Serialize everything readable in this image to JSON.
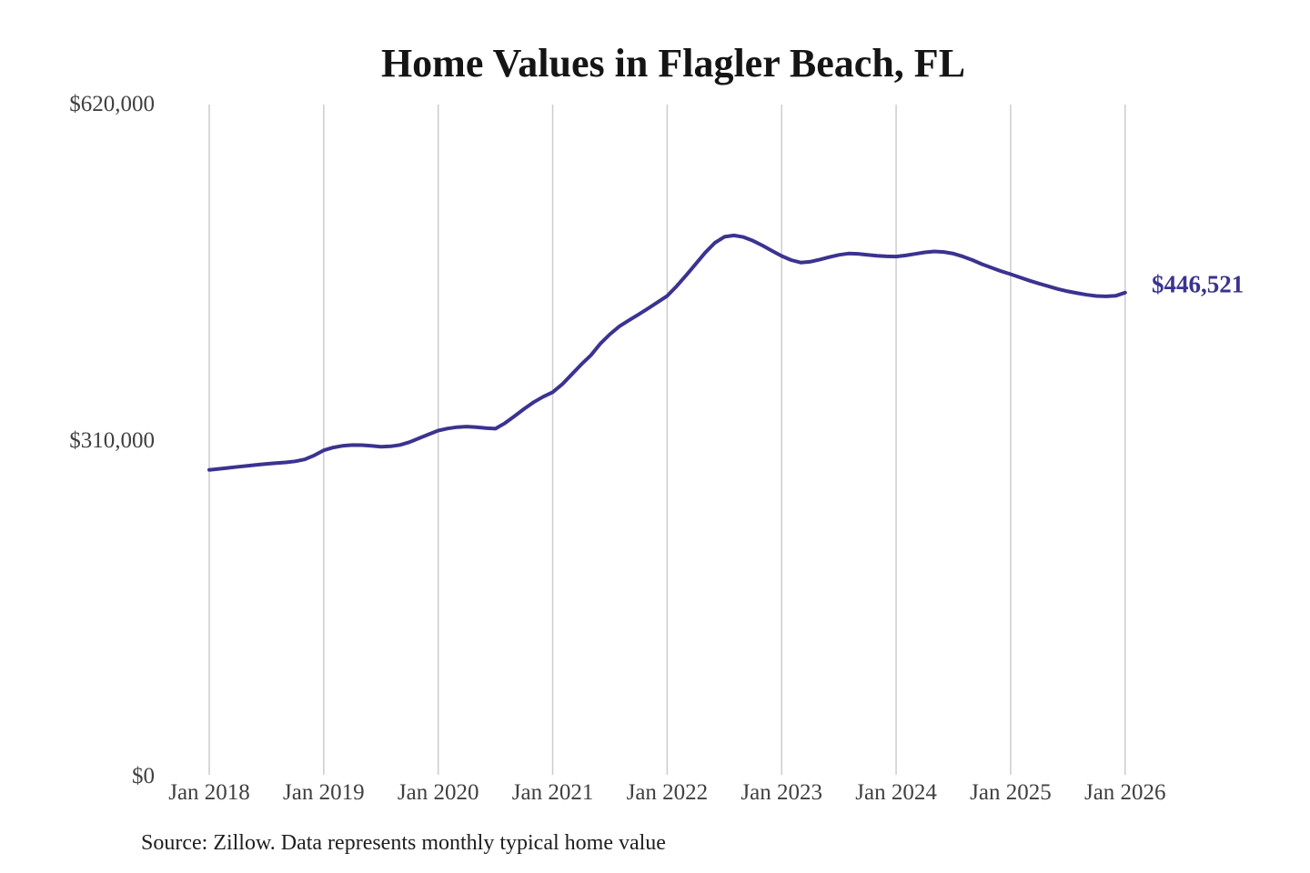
{
  "page": {
    "source_note": "Source: Zillow. Data represents monthly typical home value"
  },
  "colors": {
    "background": "#ffffff",
    "line": "#3a3390",
    "value_label": "#3a3390",
    "gridline": "#cccccc",
    "title": "#151515",
    "axis_tick": "#404040",
    "source": "#1e1e1e"
  },
  "chart_data": {
    "type": "line",
    "title": "Home Values in Flagler Beach, FL",
    "xlabel": "",
    "ylabel": "",
    "ylim": [
      0,
      620000
    ],
    "grid": "vertical-only",
    "legend_position": "none",
    "x_tick_labels": [
      "Jan 2018",
      "Jan 2019",
      "Jan 2020",
      "Jan 2021",
      "Jan 2022",
      "Jan 2023",
      "Jan 2024",
      "Jan 2025",
      "Jan 2026"
    ],
    "y_ticks": [
      {
        "label": "$0",
        "value": 0
      },
      {
        "label": "$310,000",
        "value": 310000
      },
      {
        "label": "$620,000",
        "value": 620000
      }
    ],
    "annotation": {
      "label": "$446,521",
      "value": 446521,
      "x": "Jan 2026"
    },
    "series": [
      {
        "name": "Monthly typical home value",
        "x_start": "Jan 2018",
        "x_end": "Jan 2026",
        "x_step_months": 1,
        "values": [
          283000,
          283900,
          284800,
          285800,
          286800,
          287700,
          288500,
          289200,
          289900,
          290900,
          292600,
          296300,
          301000,
          303600,
          305200,
          305900,
          305800,
          305200,
          304400,
          304700,
          306000,
          308600,
          312200,
          315800,
          319200,
          321200,
          322400,
          322900,
          322400,
          321500,
          321000,
          326100,
          332600,
          339300,
          345400,
          350400,
          354600,
          361900,
          371100,
          380300,
          388700,
          399500,
          408200,
          415500,
          421000,
          426400,
          431900,
          437700,
          443500,
          452500,
          462500,
          473000,
          483500,
          492500,
          498000,
          499300,
          497800,
          494300,
          490000,
          485000,
          480300,
          476500,
          474300,
          475000,
          477000,
          479300,
          481300,
          482600,
          482300,
          481400,
          480500,
          480000,
          479800,
          480800,
          482200,
          483700,
          484500,
          484000,
          482500,
          479800,
          476500,
          472800,
          469500,
          466300,
          463500,
          460500,
          457500,
          454800,
          452300,
          449800,
          447700,
          446000,
          444500,
          443400,
          443100,
          443600,
          446521
        ]
      }
    ]
  }
}
